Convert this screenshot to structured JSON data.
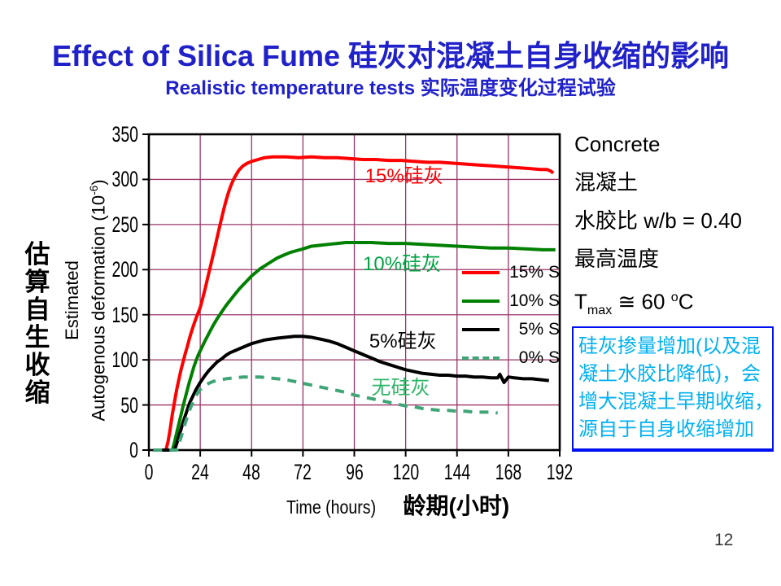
{
  "slide": {
    "title": "Effect of Silica Fume 硅灰对混凝土自身收缩的影响",
    "subtitle": "Realistic temperature tests 实际温度变化过程试验",
    "title_color": "#2021C9",
    "page_number": "12"
  },
  "left_labels": {
    "zh_vertical": "估算自生收缩",
    "ylabel_line1": "Estimated",
    "ylabel_line2_pre": "Autogenous deformation (10",
    "ylabel_sup": "-6",
    "ylabel_line2_post": ")"
  },
  "xaxis": {
    "label_en": "Time (hours)",
    "label_zh": "龄期(小时)"
  },
  "info_panel": {
    "lines": [
      "Concrete",
      "混凝土",
      "水胶比 w/b = 0.40",
      "最高温度"
    ],
    "tmax": {
      "pre": "T",
      "sub": "max",
      "mid": " ≅ 60 ",
      "sup": "o",
      "post": "C"
    }
  },
  "note_box": {
    "lines": [
      "硅灰掺量增加(以及混",
      "凝土水胶比降低)，会",
      "增大混凝土早期收缩，",
      "源自于自身收缩增加"
    ],
    "text_color": "#00B0F0",
    "border_color": "#0010F0"
  },
  "chart_data": {
    "type": "line",
    "title": "Effect of Silica Fume on autogenous shrinkage (realistic temperature tests)",
    "xlabel": "Time (hours) 龄期(小时)",
    "ylabel": "Estimated Autogenous deformation (10-6)",
    "xlim": [
      0,
      192
    ],
    "ylim": [
      0,
      350
    ],
    "xticks": [
      0,
      24,
      48,
      72,
      96,
      120,
      144,
      168,
      192
    ],
    "yticks": [
      0,
      50,
      100,
      150,
      200,
      250,
      300,
      350
    ],
    "grid": true,
    "grid_color": "#993366",
    "frame_color": "#000000",
    "legend_position": "inside right",
    "series": [
      {
        "name": "15% silica fume",
        "legend_label": "15% S",
        "color": "#FF0000",
        "style": "solid",
        "points": [
          [
            2,
            0
          ],
          [
            8,
            0
          ],
          [
            9,
            10
          ],
          [
            10,
            24
          ],
          [
            11,
            40
          ],
          [
            12,
            54
          ],
          [
            13,
            67
          ],
          [
            14,
            78
          ],
          [
            15,
            89
          ],
          [
            16,
            98
          ],
          [
            17,
            107
          ],
          [
            18,
            115
          ],
          [
            19,
            124
          ],
          [
            20,
            132
          ],
          [
            21,
            139
          ],
          [
            22,
            146
          ],
          [
            23,
            152
          ],
          [
            24,
            158
          ],
          [
            25,
            167
          ],
          [
            26,
            176
          ],
          [
            27,
            186
          ],
          [
            28,
            196
          ],
          [
            29,
            206
          ],
          [
            30,
            216
          ],
          [
            31,
            226
          ],
          [
            32,
            237
          ],
          [
            33,
            247
          ],
          [
            34,
            257
          ],
          [
            35,
            267
          ],
          [
            36,
            276
          ],
          [
            37,
            284
          ],
          [
            38,
            291
          ],
          [
            39,
            297
          ],
          [
            40,
            302
          ],
          [
            42,
            310
          ],
          [
            44,
            315
          ],
          [
            46,
            318
          ],
          [
            48,
            320
          ],
          [
            51,
            322
          ],
          [
            54,
            324
          ],
          [
            58,
            325
          ],
          [
            64,
            325
          ],
          [
            70,
            324
          ],
          [
            76,
            325
          ],
          [
            82,
            324
          ],
          [
            88,
            324
          ],
          [
            94,
            323
          ],
          [
            100,
            322
          ],
          [
            106,
            322
          ],
          [
            112,
            321
          ],
          [
            118,
            321
          ],
          [
            124,
            320
          ],
          [
            130,
            319
          ],
          [
            136,
            319
          ],
          [
            142,
            318
          ],
          [
            148,
            317
          ],
          [
            154,
            316
          ],
          [
            160,
            315
          ],
          [
            166,
            314
          ],
          [
            172,
            313
          ],
          [
            178,
            312
          ],
          [
            183,
            311
          ],
          [
            186,
            311
          ],
          [
            188,
            309
          ],
          [
            189,
            307
          ]
        ]
      },
      {
        "name": "10% silica fume",
        "legend_label": "10% S",
        "color": "#008000",
        "style": "solid",
        "points": [
          [
            2,
            0
          ],
          [
            11,
            0
          ],
          [
            12,
            9
          ],
          [
            13,
            19
          ],
          [
            14,
            29
          ],
          [
            15,
            39
          ],
          [
            16,
            49
          ],
          [
            17,
            58
          ],
          [
            18,
            67
          ],
          [
            19,
            76
          ],
          [
            20,
            84
          ],
          [
            21,
            92
          ],
          [
            22,
            99
          ],
          [
            23,
            105
          ],
          [
            24,
            110
          ],
          [
            26,
            120
          ],
          [
            28,
            129
          ],
          [
            30,
            138
          ],
          [
            32,
            146
          ],
          [
            34,
            153
          ],
          [
            36,
            160
          ],
          [
            38,
            166
          ],
          [
            40,
            172
          ],
          [
            42,
            178
          ],
          [
            44,
            183
          ],
          [
            46,
            188
          ],
          [
            48,
            193
          ],
          [
            50,
            197
          ],
          [
            52,
            201
          ],
          [
            54,
            204
          ],
          [
            56,
            207
          ],
          [
            58,
            210
          ],
          [
            60,
            213
          ],
          [
            63,
            216
          ],
          [
            66,
            219
          ],
          [
            69,
            221
          ],
          [
            72,
            223
          ],
          [
            76,
            226
          ],
          [
            80,
            227
          ],
          [
            84,
            228
          ],
          [
            88,
            229
          ],
          [
            92,
            230
          ],
          [
            96,
            230
          ],
          [
            104,
            230
          ],
          [
            112,
            229
          ],
          [
            120,
            229
          ],
          [
            128,
            228
          ],
          [
            136,
            227
          ],
          [
            144,
            226
          ],
          [
            152,
            225
          ],
          [
            160,
            224
          ],
          [
            168,
            224
          ],
          [
            176,
            223
          ],
          [
            184,
            222
          ],
          [
            190,
            222
          ]
        ]
      },
      {
        "name": "5% silica fume",
        "legend_label": "5% S",
        "color": "#000000",
        "style": "solid",
        "points": [
          [
            2,
            0
          ],
          [
            12,
            0
          ],
          [
            13,
            7
          ],
          [
            14,
            15
          ],
          [
            15,
            23
          ],
          [
            16,
            31
          ],
          [
            17,
            38
          ],
          [
            18,
            45
          ],
          [
            19,
            52
          ],
          [
            20,
            57
          ],
          [
            21,
            62
          ],
          [
            22,
            67
          ],
          [
            23,
            71
          ],
          [
            24,
            75
          ],
          [
            26,
            82
          ],
          [
            28,
            88
          ],
          [
            30,
            93
          ],
          [
            32,
            98
          ],
          [
            34,
            101
          ],
          [
            36,
            105
          ],
          [
            38,
            108
          ],
          [
            40,
            110
          ],
          [
            42,
            112
          ],
          [
            44,
            114
          ],
          [
            46,
            116
          ],
          [
            48,
            118
          ],
          [
            51,
            120
          ],
          [
            54,
            122
          ],
          [
            57,
            123
          ],
          [
            60,
            124
          ],
          [
            64,
            125
          ],
          [
            68,
            126
          ],
          [
            72,
            126
          ],
          [
            76,
            125
          ],
          [
            80,
            123
          ],
          [
            84,
            121
          ],
          [
            88,
            118
          ],
          [
            92,
            114
          ],
          [
            96,
            110
          ],
          [
            100,
            106
          ],
          [
            104,
            102
          ],
          [
            108,
            98
          ],
          [
            112,
            95
          ],
          [
            116,
            92
          ],
          [
            120,
            89
          ],
          [
            124,
            87
          ],
          [
            128,
            85
          ],
          [
            132,
            84
          ],
          [
            136,
            83
          ],
          [
            140,
            83
          ],
          [
            144,
            82
          ],
          [
            148,
            82
          ],
          [
            152,
            81
          ],
          [
            156,
            81
          ],
          [
            160,
            80
          ],
          [
            163,
            80
          ],
          [
            164,
            84
          ],
          [
            166,
            75
          ],
          [
            168,
            81
          ],
          [
            171,
            80
          ],
          [
            175,
            79
          ],
          [
            179,
            79
          ],
          [
            183,
            78
          ],
          [
            187,
            77
          ]
        ]
      },
      {
        "name": "0% silica fume",
        "legend_label": "0% S",
        "color": "#3FA577",
        "style": "dashed",
        "points": [
          [
            2,
            0
          ],
          [
            13,
            0
          ],
          [
            14,
            7
          ],
          [
            15,
            14
          ],
          [
            16,
            22
          ],
          [
            17,
            30
          ],
          [
            18,
            37
          ],
          [
            19,
            44
          ],
          [
            20,
            50
          ],
          [
            21,
            55
          ],
          [
            22,
            60
          ],
          [
            23,
            64
          ],
          [
            24,
            67
          ],
          [
            26,
            71
          ],
          [
            28,
            74
          ],
          [
            30,
            76
          ],
          [
            32,
            77
          ],
          [
            36,
            79
          ],
          [
            40,
            80
          ],
          [
            44,
            81
          ],
          [
            48,
            81
          ],
          [
            52,
            81
          ],
          [
            56,
            80
          ],
          [
            60,
            79
          ],
          [
            64,
            78
          ],
          [
            68,
            76
          ],
          [
            72,
            74
          ],
          [
            76,
            72
          ],
          [
            80,
            70
          ],
          [
            84,
            68
          ],
          [
            88,
            66
          ],
          [
            92,
            64
          ],
          [
            96,
            61
          ],
          [
            100,
            59
          ],
          [
            104,
            57
          ],
          [
            108,
            55
          ],
          [
            112,
            53
          ],
          [
            116,
            51
          ],
          [
            120,
            49
          ],
          [
            124,
            48
          ],
          [
            128,
            46
          ],
          [
            132,
            45
          ],
          [
            136,
            44
          ],
          [
            140,
            44
          ],
          [
            144,
            43
          ],
          [
            148,
            43
          ],
          [
            152,
            42
          ],
          [
            156,
            42
          ],
          [
            160,
            42
          ],
          [
            163,
            41
          ]
        ]
      }
    ],
    "annotations": [
      {
        "text": "15%硅灰",
        "color": "#FF0000",
        "t": 101,
        "v": 303
      },
      {
        "text": "10%硅灰",
        "color": "#00A443",
        "t": 100,
        "v": 206
      },
      {
        "text": "5%硅灰",
        "color": "#000000",
        "t": 103,
        "v": 120
      },
      {
        "text": "无硅灰",
        "color": "#2EB567",
        "t": 104,
        "v": 69
      }
    ]
  }
}
